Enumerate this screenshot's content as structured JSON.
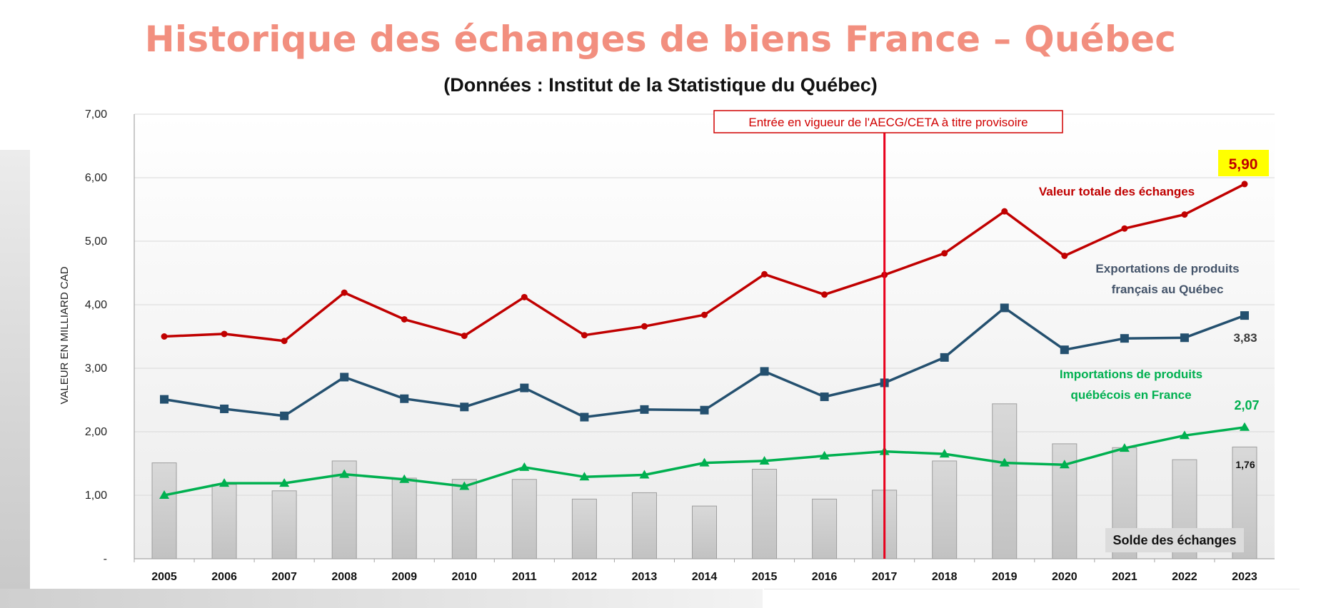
{
  "page": {
    "title": "Historique des échanges de biens France – Québec",
    "subtitle": "(Données : Institut de la Statistique du Québec)"
  },
  "chart_data": {
    "type": "line",
    "ylabel": "VALEUR EN MILLIARD CAD",
    "xlabel": "",
    "ylim": [
      0,
      7
    ],
    "y_ticks": [
      "-",
      "1,00",
      "2,00",
      "3,00",
      "4,00",
      "5,00",
      "6,00",
      "7,00"
    ],
    "grid": true,
    "categories": [
      "2005",
      "2006",
      "2007",
      "2008",
      "2009",
      "2010",
      "2011",
      "2012",
      "2013",
      "2014",
      "2015",
      "2016",
      "2017",
      "2018",
      "2019",
      "2020",
      "2021",
      "2022",
      "2023"
    ],
    "series": [
      {
        "name": "Valeur totale des échanges",
        "kind": "line",
        "marker": "circle",
        "color": "#c00000",
        "values": [
          3.5,
          3.54,
          3.43,
          4.19,
          3.77,
          3.51,
          4.12,
          3.52,
          3.66,
          3.84,
          4.48,
          4.16,
          4.47,
          4.81,
          5.47,
          4.77,
          5.2,
          5.42,
          5.9
        ]
      },
      {
        "name": "Exportations de produits français au Québec",
        "kind": "line",
        "marker": "square",
        "color": "#24506f",
        "values": [
          2.51,
          2.36,
          2.25,
          2.86,
          2.52,
          2.39,
          2.69,
          2.23,
          2.35,
          2.34,
          2.95,
          2.55,
          2.77,
          3.17,
          3.95,
          3.29,
          3.47,
          3.48,
          3.83
        ]
      },
      {
        "name": "Importations de produits québécois en France",
        "kind": "line",
        "marker": "triangle",
        "color": "#00b050",
        "values": [
          1.0,
          1.19,
          1.19,
          1.33,
          1.25,
          1.14,
          1.44,
          1.29,
          1.32,
          1.51,
          1.54,
          1.62,
          1.69,
          1.65,
          1.51,
          1.48,
          1.74,
          1.94,
          2.07
        ]
      },
      {
        "name": "Solde des échanges",
        "kind": "bar",
        "color": "#c8c8c8",
        "values": [
          1.51,
          1.17,
          1.07,
          1.54,
          1.27,
          1.25,
          1.25,
          0.94,
          1.04,
          0.83,
          1.41,
          0.94,
          1.08,
          1.54,
          2.44,
          1.81,
          1.75,
          1.56,
          1.76
        ]
      }
    ],
    "series_labels": {
      "total": "Valeur totale des échanges",
      "exports_line1": "Exportations de produits",
      "exports_line2": "français au Québec",
      "imports_line1": "Importations de produits",
      "imports_line2": "québécois en France",
      "solde": "Solde des échanges"
    },
    "data_labels": {
      "total_2023": "5,90",
      "exports_2023": "3,83",
      "imports_2023": "2,07",
      "solde_2023": "1,76"
    },
    "annotation": {
      "text": "Entrée en vigueur de l'AECG/CETA à titre provisoire",
      "year": "2017",
      "color": "#e8001c"
    }
  }
}
